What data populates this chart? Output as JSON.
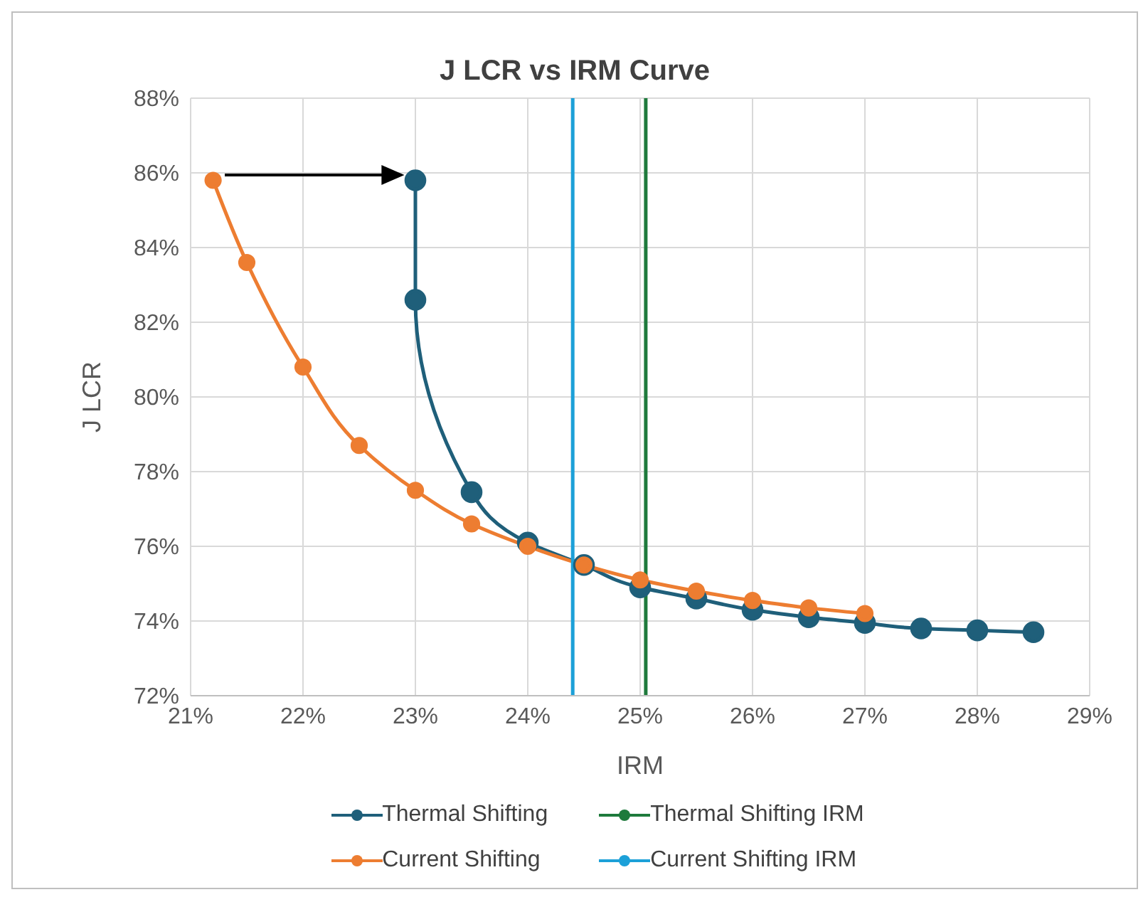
{
  "chart_data": {
    "type": "line",
    "title": "J LCR vs IRM Curve",
    "xlabel": "IRM",
    "ylabel": "J LCR",
    "xlim": [
      21,
      29
    ],
    "xticks": [
      {
        "value": 21,
        "label": "21%"
      },
      {
        "value": 22,
        "label": "22%"
      },
      {
        "value": 23,
        "label": "23%"
      },
      {
        "value": 24,
        "label": "24%"
      },
      {
        "value": 25,
        "label": "25%"
      },
      {
        "value": 26,
        "label": "26%"
      },
      {
        "value": 27,
        "label": "27%"
      },
      {
        "value": 28,
        "label": "28%"
      },
      {
        "value": 29,
        "label": "29%"
      }
    ],
    "ylim": [
      72,
      88
    ],
    "yticks": [
      {
        "value": 72,
        "label": "72%"
      },
      {
        "value": 74,
        "label": "74%"
      },
      {
        "value": 76,
        "label": "76%"
      },
      {
        "value": 78,
        "label": "78%"
      },
      {
        "value": 80,
        "label": "80%"
      },
      {
        "value": 82,
        "label": "82%"
      },
      {
        "value": 84,
        "label": "84%"
      },
      {
        "value": 86,
        "label": "86%"
      },
      {
        "value": 88,
        "label": "88%"
      }
    ],
    "grid": true,
    "legend": "bottom",
    "marker": "circle",
    "line_style": "solid",
    "series": [
      {
        "name": "Thermal Shifting",
        "color": "#1f5f7a",
        "x": [
          23.0,
          23.0,
          23.5,
          24.0,
          24.5,
          25.0,
          25.5,
          26.0,
          26.5,
          27.0,
          27.5,
          28.0,
          28.5
        ],
        "values": [
          85.8,
          82.6,
          77.45,
          76.1,
          75.5,
          74.9,
          74.6,
          74.3,
          74.1,
          73.95,
          73.8,
          73.75,
          73.7
        ]
      },
      {
        "name": "Thermal Shifting IRM",
        "color": "#1e7a3c",
        "marker": "none",
        "x": [
          25.05,
          25.05
        ],
        "values": [
          72,
          88
        ]
      },
      {
        "name": "Current Shifting",
        "color": "#ed7d31",
        "x": [
          21.2,
          21.5,
          22.0,
          22.5,
          23.0,
          23.5,
          24.0,
          24.5,
          25.0,
          25.5,
          26.0,
          26.5,
          27.0
        ],
        "values": [
          85.8,
          83.6,
          80.8,
          78.7,
          77.5,
          76.6,
          76.0,
          75.5,
          75.1,
          74.8,
          74.55,
          74.35,
          74.2
        ]
      },
      {
        "name": "Current Shifting IRM",
        "color": "#1ca0d8",
        "marker": "none",
        "x": [
          24.4,
          24.4
        ],
        "values": [
          72,
          88
        ]
      }
    ]
  }
}
